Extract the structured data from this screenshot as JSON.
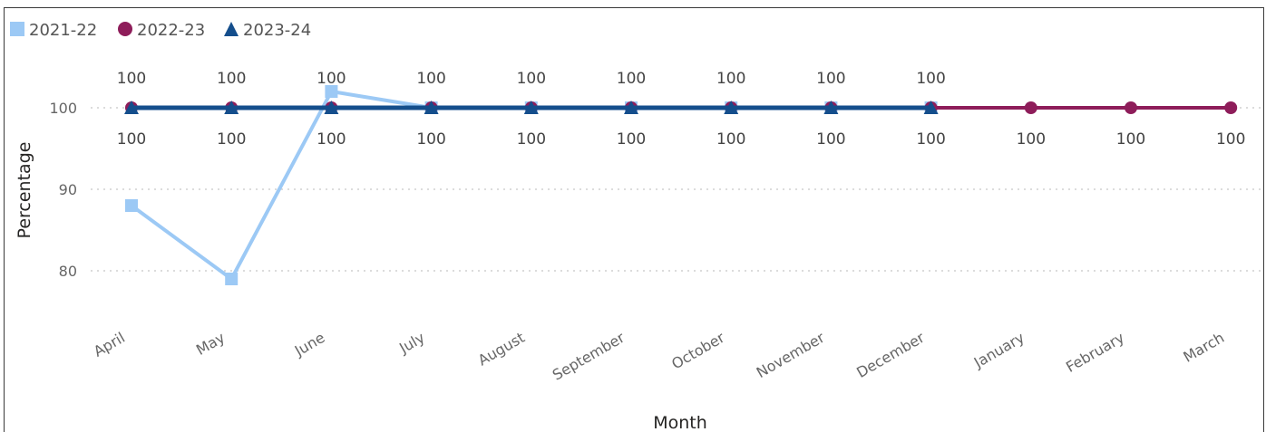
{
  "chart_data": {
    "type": "line",
    "title": "",
    "xlabel": "Month",
    "ylabel": "Percentage",
    "ylim": [
      75,
      108
    ],
    "yticks": [
      80,
      90,
      100
    ],
    "grid": true,
    "legend_position": "top-left",
    "categories": [
      "April",
      "May",
      "June",
      "July",
      "August",
      "September",
      "October",
      "November",
      "December",
      "January",
      "February",
      "March"
    ],
    "series": [
      {
        "name": "2021-22",
        "marker": "square",
        "color": "#9cc9f5",
        "values": [
          88,
          79,
          102,
          100,
          100,
          100,
          100,
          100,
          100,
          null,
          null,
          null
        ]
      },
      {
        "name": "2022-23",
        "marker": "circle",
        "color": "#8e1d5a",
        "values": [
          100,
          100,
          100,
          100,
          100,
          100,
          100,
          100,
          100,
          100,
          100,
          100
        ],
        "labels": [
          "100",
          "100",
          "100",
          "100",
          "100",
          "100",
          "100",
          "100",
          "100",
          "100",
          "100",
          "100"
        ]
      },
      {
        "name": "2023-24",
        "marker": "triangle",
        "color": "#144e8c",
        "values": [
          100,
          100,
          100,
          100,
          100,
          100,
          100,
          100,
          100,
          null,
          null,
          null
        ],
        "labels": [
          "100",
          "100",
          "100",
          "100",
          "100",
          "100",
          "100",
          "100",
          "100",
          "",
          "",
          ""
        ]
      }
    ]
  }
}
